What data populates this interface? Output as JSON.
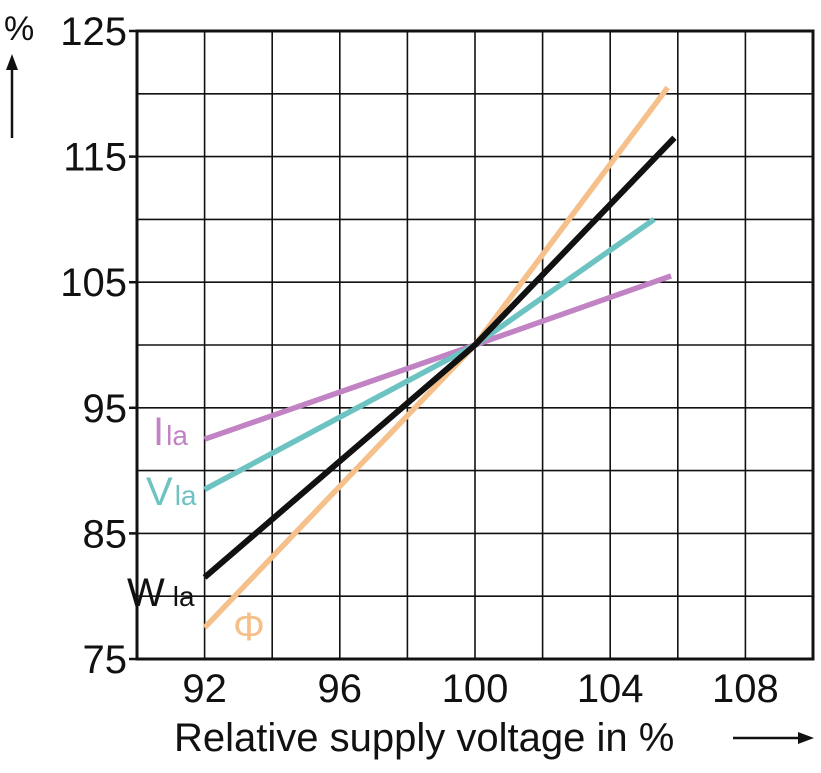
{
  "chart_data": {
    "type": "line",
    "title": "",
    "xlabel": "Relative supply voltage in %",
    "ylabel": "%",
    "xlim": [
      90,
      110
    ],
    "ylim": [
      75,
      125
    ],
    "grid": true,
    "x_ticks": [
      92,
      96,
      100,
      104,
      108
    ],
    "y_ticks": [
      75,
      85,
      95,
      105,
      115,
      125
    ],
    "series": [
      {
        "name": "Ila",
        "color": "#c283c4",
        "x": [
          92,
          100,
          105.8
        ],
        "y": [
          92.5,
          100,
          105.5
        ]
      },
      {
        "name": "Vla",
        "color": "#6cc3c1",
        "x": [
          92,
          100,
          105.3
        ],
        "y": [
          88.5,
          100,
          110
        ]
      },
      {
        "name": "Wla",
        "color": "#111111",
        "x": [
          92,
          100,
          105.9
        ],
        "y": [
          81.5,
          100,
          116.5
        ]
      },
      {
        "name": "Φ",
        "color": "#f5c08a",
        "x": [
          92,
          100,
          105.7
        ],
        "y": [
          77.5,
          100,
          120.5
        ]
      }
    ]
  }
}
